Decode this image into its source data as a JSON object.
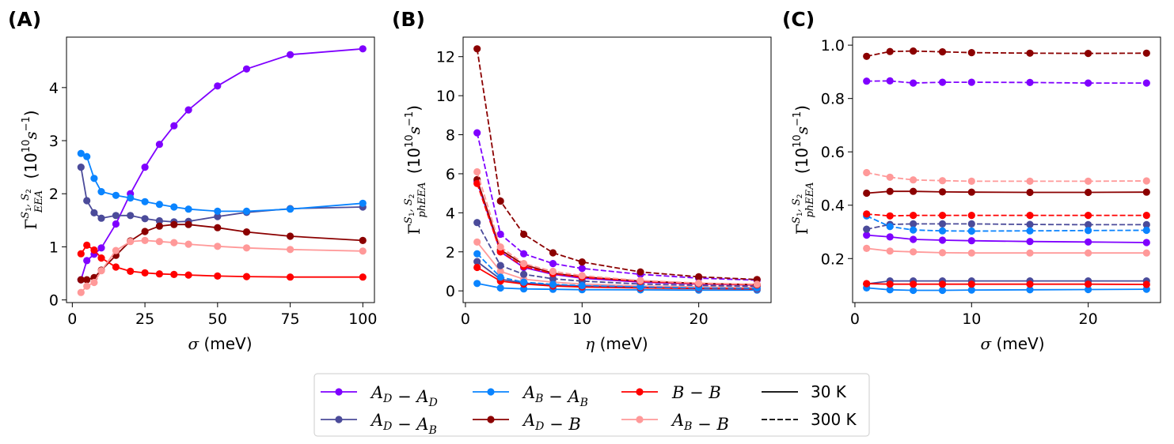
{
  "series_styles": [
    {
      "key": "AD-AD",
      "color": "#7f00ff"
    },
    {
      "key": "AD-AB",
      "color": "#4b4b9a"
    },
    {
      "key": "AB-AB",
      "color": "#0a84ff"
    },
    {
      "key": "AD-B",
      "color": "#8b0000"
    },
    {
      "key": "B-B",
      "color": "#ff0000"
    },
    {
      "key": "AB-B",
      "color": "#ff9999"
    }
  ],
  "legend": {
    "entries": [
      {
        "key": "AD-AD",
        "label": "A_D − A_D",
        "color": "#7f00ff",
        "style": "marker"
      },
      {
        "key": "AD-AB",
        "label": "A_D − A_B",
        "color": "#4b4b9a",
        "style": "marker"
      },
      {
        "key": "AB-AB",
        "label": "A_B − A_B",
        "color": "#0a84ff",
        "style": "marker"
      },
      {
        "key": "AD-B",
        "label": "A_D − B",
        "color": "#8b0000",
        "style": "marker"
      },
      {
        "key": "B-B",
        "label": "B − B",
        "color": "#ff0000",
        "style": "marker"
      },
      {
        "key": "AB-B",
        "label": "A_B − B",
        "color": "#ff9999",
        "style": "marker"
      },
      {
        "key": "30K",
        "label": "30 K",
        "color": "#000000",
        "style": "solid"
      },
      {
        "key": "300K",
        "label": "300 K",
        "color": "#000000",
        "style": "dashed"
      }
    ]
  },
  "chart_data": [
    {
      "panel": "(A)",
      "type": "line",
      "xlabel": "σ (meV)",
      "ylabel": "Γ_EEA^{S1,S2} (10^10 s^-1)",
      "xlim": [
        -2,
        104
      ],
      "ylim": [
        -0.05,
        4.95
      ],
      "xticks": [
        0,
        25,
        50,
        75,
        100
      ],
      "yticks": [
        0,
        1,
        2,
        3,
        4
      ],
      "series": [
        {
          "key": "AD-AD",
          "linestyle": "solid",
          "x": [
            3,
            5,
            7.5,
            10,
            15,
            20,
            25,
            30,
            35,
            40,
            50,
            60,
            75,
            100
          ],
          "y": [
            0.38,
            0.74,
            0.86,
            0.98,
            1.43,
            2.0,
            2.5,
            2.93,
            3.28,
            3.58,
            4.03,
            4.35,
            4.62,
            4.73
          ]
        },
        {
          "key": "AD-AB",
          "linestyle": "solid",
          "x": [
            3,
            5,
            7.5,
            10,
            15,
            20,
            25,
            30,
            35,
            40,
            50,
            60,
            75,
            100
          ],
          "y": [
            2.5,
            1.87,
            1.64,
            1.54,
            1.59,
            1.59,
            1.53,
            1.49,
            1.47,
            1.48,
            1.57,
            1.65,
            1.72,
            1.75
          ]
        },
        {
          "key": "AB-AB",
          "linestyle": "solid",
          "x": [
            3,
            5,
            7.5,
            10,
            15,
            20,
            25,
            30,
            35,
            40,
            50,
            60,
            75,
            100
          ],
          "y": [
            2.76,
            2.7,
            2.29,
            2.04,
            1.97,
            1.92,
            1.85,
            1.8,
            1.75,
            1.71,
            1.67,
            1.67,
            1.71,
            1.82
          ]
        },
        {
          "key": "AD-B",
          "linestyle": "solid",
          "x": [
            3,
            5,
            7.5,
            10,
            15,
            20,
            25,
            30,
            35,
            40,
            50,
            60,
            75,
            100
          ],
          "y": [
            0.38,
            0.38,
            0.42,
            0.56,
            0.84,
            1.11,
            1.29,
            1.39,
            1.42,
            1.42,
            1.36,
            1.28,
            1.2,
            1.12
          ]
        },
        {
          "key": "B-B",
          "linestyle": "solid",
          "x": [
            3,
            5,
            7.5,
            10,
            15,
            20,
            25,
            30,
            35,
            40,
            50,
            60,
            75,
            100
          ],
          "y": [
            0.87,
            1.03,
            0.94,
            0.79,
            0.62,
            0.54,
            0.51,
            0.49,
            0.48,
            0.47,
            0.45,
            0.44,
            0.43,
            0.43
          ]
        },
        {
          "key": "AB-B",
          "linestyle": "solid",
          "x": [
            3,
            5,
            7.5,
            10,
            15,
            20,
            25,
            30,
            35,
            40,
            50,
            60,
            75,
            100
          ],
          "y": [
            0.14,
            0.26,
            0.33,
            0.55,
            0.93,
            1.1,
            1.12,
            1.1,
            1.08,
            1.05,
            1.01,
            0.98,
            0.95,
            0.92
          ]
        }
      ]
    },
    {
      "panel": "(B)",
      "type": "line",
      "xlabel": "η (meV)",
      "ylabel": "Γ_phEEA^{S1,S2} (10^10 s^-1)",
      "xlim": [
        -0.2,
        26.2
      ],
      "ylim": [
        -0.6,
        13.0
      ],
      "xticks": [
        0,
        10,
        20
      ],
      "yticks": [
        0,
        2,
        4,
        6,
        8,
        10,
        12
      ],
      "series": [
        {
          "key": "AD-AD",
          "linestyle": "solid",
          "x": [
            1,
            3,
            5,
            7.5,
            10,
            15,
            20,
            25
          ],
          "y": [
            5.6,
            2.0,
            1.2,
            0.85,
            0.65,
            0.45,
            0.35,
            0.3
          ]
        },
        {
          "key": "AD-AB",
          "linestyle": "solid",
          "x": [
            1,
            3,
            5,
            7.5,
            10,
            15,
            20,
            25
          ],
          "y": [
            1.5,
            0.6,
            0.4,
            0.3,
            0.25,
            0.2,
            0.15,
            0.15
          ]
        },
        {
          "key": "AB-AB",
          "linestyle": "solid",
          "x": [
            1,
            3,
            5,
            7.5,
            10,
            15,
            20,
            25
          ],
          "y": [
            0.38,
            0.15,
            0.1,
            0.08,
            0.06,
            0.05,
            0.04,
            0.04
          ]
        },
        {
          "key": "AD-B",
          "linestyle": "solid",
          "x": [
            1,
            3,
            5,
            7.5,
            10,
            15,
            20,
            25
          ],
          "y": [
            5.7,
            2.1,
            1.35,
            0.9,
            0.72,
            0.5,
            0.38,
            0.32
          ]
        },
        {
          "key": "B-B",
          "linestyle": "solid",
          "x": [
            1,
            3,
            5,
            7.5,
            10,
            15,
            20,
            25
          ],
          "y": [
            1.2,
            0.5,
            0.35,
            0.25,
            0.2,
            0.15,
            0.12,
            0.1
          ]
        },
        {
          "key": "AB-B",
          "linestyle": "solid",
          "x": [
            1,
            3,
            5,
            7.5,
            10,
            15,
            20,
            25
          ],
          "y": [
            2.5,
            1.0,
            0.6,
            0.45,
            0.35,
            0.25,
            0.2,
            0.17
          ]
        },
        {
          "key": "AD-AD",
          "linestyle": "dashed",
          "x": [
            1,
            3,
            5,
            7.5,
            10,
            15,
            20,
            25
          ],
          "y": [
            8.1,
            2.9,
            1.9,
            1.4,
            1.15,
            0.85,
            0.65,
            0.55
          ]
        },
        {
          "key": "AD-AB",
          "linestyle": "dashed",
          "x": [
            1,
            3,
            5,
            7.5,
            10,
            15,
            20,
            25
          ],
          "y": [
            3.5,
            1.3,
            0.85,
            0.62,
            0.5,
            0.35,
            0.28,
            0.23
          ]
        },
        {
          "key": "AB-AB",
          "linestyle": "dashed",
          "x": [
            1,
            3,
            5,
            7.5,
            10,
            15,
            20,
            25
          ],
          "y": [
            1.9,
            0.7,
            0.45,
            0.33,
            0.27,
            0.2,
            0.15,
            0.13
          ]
        },
        {
          "key": "AD-B",
          "linestyle": "dashed",
          "x": [
            1,
            3,
            5,
            7.5,
            10,
            15,
            20,
            25
          ],
          "y": [
            12.4,
            4.6,
            2.9,
            1.95,
            1.48,
            0.97,
            0.72,
            0.58
          ]
        },
        {
          "key": "B-B",
          "linestyle": "dashed",
          "x": [
            1,
            3,
            5,
            7.5,
            10,
            15,
            20,
            25
          ],
          "y": [
            5.5,
            2.0,
            1.25,
            0.88,
            0.7,
            0.48,
            0.37,
            0.31
          ]
        },
        {
          "key": "AB-B",
          "linestyle": "dashed",
          "x": [
            1,
            3,
            5,
            7.5,
            10,
            15,
            20,
            25
          ],
          "y": [
            6.1,
            2.25,
            1.4,
            1.0,
            0.78,
            0.53,
            0.4,
            0.34
          ]
        }
      ]
    },
    {
      "panel": "(C)",
      "type": "line",
      "xlabel": "σ (meV)",
      "ylabel": "Γ_phEEA^{S1,S2} (10^10 s^-1)",
      "xlim": [
        -0.2,
        26.2
      ],
      "ylim": [
        0.035,
        1.03
      ],
      "xticks": [
        0,
        10,
        20
      ],
      "yticks": [
        0.2,
        0.4,
        0.6,
        0.8,
        1.0
      ],
      "series": [
        {
          "key": "AD-AD",
          "linestyle": "solid",
          "x": [
            1,
            3,
            5,
            7.5,
            10,
            15,
            20,
            25
          ],
          "y": [
            0.288,
            0.281,
            0.272,
            0.269,
            0.267,
            0.264,
            0.262,
            0.26
          ]
        },
        {
          "key": "AD-AB",
          "linestyle": "solid",
          "x": [
            1,
            3,
            5,
            7.5,
            10,
            15,
            20,
            25
          ],
          "y": [
            0.105,
            0.116,
            0.116,
            0.116,
            0.116,
            0.116,
            0.116,
            0.116
          ]
        },
        {
          "key": "AB-AB",
          "linestyle": "solid",
          "x": [
            1,
            3,
            5,
            7.5,
            10,
            15,
            20,
            25
          ],
          "y": [
            0.09,
            0.083,
            0.081,
            0.081,
            0.082,
            0.083,
            0.084,
            0.085
          ]
        },
        {
          "key": "AD-B",
          "linestyle": "solid",
          "x": [
            1,
            3,
            5,
            7.5,
            10,
            15,
            20,
            25
          ],
          "y": [
            0.445,
            0.452,
            0.452,
            0.45,
            0.449,
            0.448,
            0.448,
            0.449
          ]
        },
        {
          "key": "B-B",
          "linestyle": "solid",
          "x": [
            1,
            3,
            5,
            7.5,
            10,
            15,
            20,
            25
          ],
          "y": [
            0.106,
            0.104,
            0.104,
            0.104,
            0.104,
            0.104,
            0.104,
            0.103
          ]
        },
        {
          "key": "AB-B",
          "linestyle": "solid",
          "x": [
            1,
            3,
            5,
            7.5,
            10,
            15,
            20,
            25
          ],
          "y": [
            0.238,
            0.228,
            0.225,
            0.222,
            0.221,
            0.221,
            0.221,
            0.221
          ]
        },
        {
          "key": "AD-AD",
          "linestyle": "dashed",
          "x": [
            1,
            3,
            5,
            7.5,
            10,
            15,
            20,
            25
          ],
          "y": [
            0.865,
            0.866,
            0.858,
            0.861,
            0.861,
            0.86,
            0.858,
            0.858
          ]
        },
        {
          "key": "AD-AB",
          "linestyle": "dashed",
          "x": [
            1,
            3,
            5,
            7.5,
            10,
            15,
            20,
            25
          ],
          "y": [
            0.31,
            0.328,
            0.33,
            0.33,
            0.33,
            0.328,
            0.327,
            0.327
          ]
        },
        {
          "key": "AB-AB",
          "linestyle": "dashed",
          "x": [
            1,
            3,
            5,
            7.5,
            10,
            15,
            20,
            25
          ],
          "y": [
            0.36,
            0.32,
            0.307,
            0.304,
            0.303,
            0.304,
            0.305,
            0.306
          ]
        },
        {
          "key": "AD-B",
          "linestyle": "dashed",
          "x": [
            1,
            3,
            5,
            7.5,
            10,
            15,
            20,
            25
          ],
          "y": [
            0.958,
            0.976,
            0.978,
            0.975,
            0.972,
            0.97,
            0.969,
            0.97
          ]
        },
        {
          "key": "B-B",
          "linestyle": "dashed",
          "x": [
            1,
            3,
            5,
            7.5,
            10,
            15,
            20,
            25
          ],
          "y": [
            0.367,
            0.36,
            0.362,
            0.362,
            0.362,
            0.362,
            0.362,
            0.362
          ]
        },
        {
          "key": "AB-B",
          "linestyle": "dashed",
          "x": [
            1,
            3,
            5,
            7.5,
            10,
            15,
            20,
            25
          ],
          "y": [
            0.522,
            0.505,
            0.495,
            0.492,
            0.49,
            0.49,
            0.49,
            0.491
          ]
        }
      ]
    }
  ]
}
